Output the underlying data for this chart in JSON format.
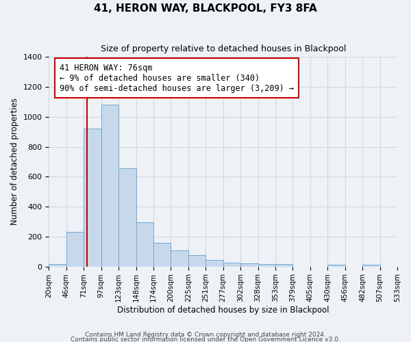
{
  "title": "41, HERON WAY, BLACKPOOL, FY3 8FA",
  "subtitle": "Size of property relative to detached houses in Blackpool",
  "xlabel": "Distribution of detached houses by size in Blackpool",
  "ylabel": "Number of detached properties",
  "bar_values": [
    15,
    230,
    920,
    1080,
    655,
    295,
    160,
    110,
    75,
    45,
    25,
    20,
    18,
    15,
    0,
    0,
    12,
    0,
    10,
    0
  ],
  "bin_labels": [
    "20sqm",
    "46sqm",
    "71sqm",
    "97sqm",
    "123sqm",
    "148sqm",
    "174sqm",
    "200sqm",
    "225sqm",
    "251sqm",
    "277sqm",
    "302sqm",
    "328sqm",
    "353sqm",
    "379sqm",
    "405sqm",
    "430sqm",
    "456sqm",
    "482sqm",
    "507sqm",
    "533sqm"
  ],
  "bar_color": "#c8d8eb",
  "bar_edge_color": "#6aaad4",
  "vline_x": 2.2,
  "vline_color": "#cc0000",
  "ylim": [
    0,
    1400
  ],
  "yticks": [
    0,
    200,
    400,
    600,
    800,
    1000,
    1200,
    1400
  ],
  "annotation_text": "41 HERON WAY: 76sqm\n← 9% of detached houses are smaller (340)\n90% of semi-detached houses are larger (3,209) →",
  "annotation_box_color": "#ffffff",
  "annotation_box_edge": "#cc0000",
  "footer1": "Contains HM Land Registry data © Crown copyright and database right 2024.",
  "footer2": "Contains public sector information licensed under the Open Government Licence v3.0.",
  "background_color": "#eef2f7",
  "grid_color": "#d0d8e4",
  "plot_bg_color": "#eef2f7"
}
